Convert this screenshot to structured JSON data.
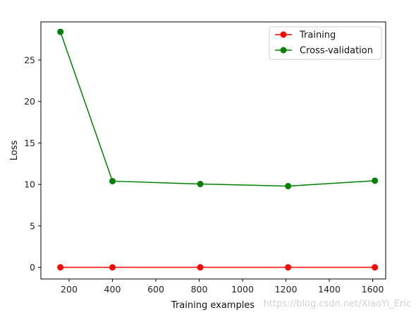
{
  "chart_data": {
    "type": "line",
    "xlabel": "Training examples",
    "ylabel": "Loss",
    "xlim": [
      70,
      1660
    ],
    "ylim": [
      -1.4,
      29.6
    ],
    "x": [
      160,
      400,
      805,
      1210,
      1610
    ],
    "xticks": [
      200,
      400,
      600,
      800,
      1000,
      1200,
      1400,
      1600
    ],
    "yticks": [
      0,
      5,
      10,
      15,
      20,
      25
    ],
    "series": [
      {
        "name": "Training",
        "color": "#ff0000",
        "values": [
          0,
          0,
          0,
          0,
          0
        ]
      },
      {
        "name": "Cross-validation",
        "color": "#008000",
        "values": [
          28.4,
          10.4,
          10.05,
          9.8,
          10.45
        ]
      }
    ],
    "legend": "top-right",
    "grid": false
  },
  "watermark": "https://blog.csdn.net/XiaoYi_Eric"
}
